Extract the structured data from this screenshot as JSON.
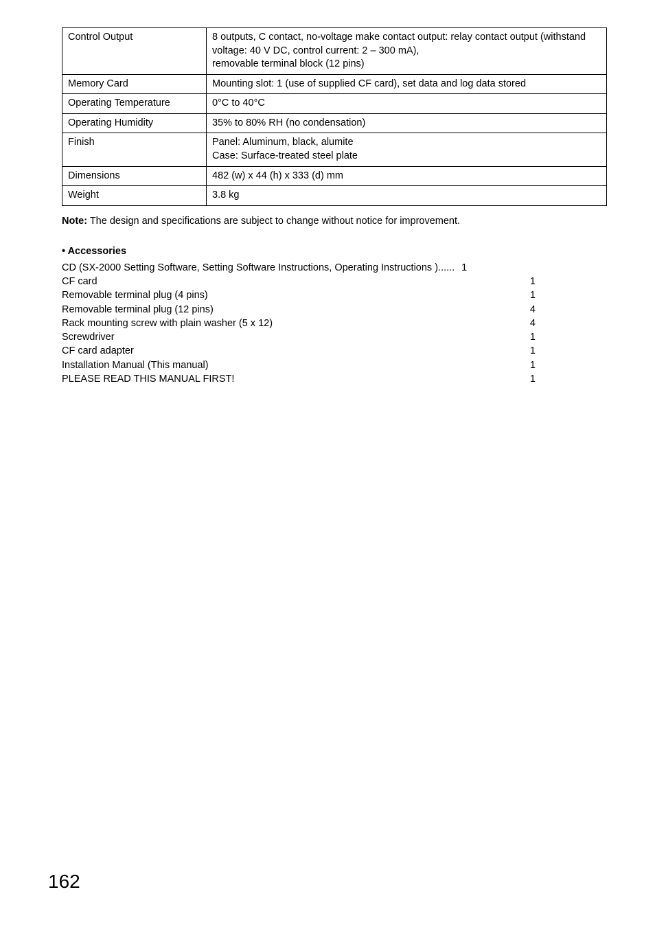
{
  "spec_table": {
    "rows": [
      {
        "label": "Control Output",
        "value": "8 outputs, C contact, no-voltage make contact output: relay contact output (withstand voltage: 40 V DC, control current: 2 – 300 mA),\nremovable terminal block (12 pins)"
      },
      {
        "label": "Memory Card",
        "value": "Mounting slot: 1 (use of supplied CF card), set data and log data stored"
      },
      {
        "label": "Operating Temperature",
        "value": "0°C to 40°C"
      },
      {
        "label": "Operating Humidity",
        "value": "35% to 80% RH (no condensation)"
      },
      {
        "label": "Finish",
        "value": "Panel: Aluminum, black, alumite\nCase:  Surface-treated steel plate"
      },
      {
        "label": "Dimensions",
        "value": "482 (w) x 44 (h) x 333 (d) mm"
      },
      {
        "label": "Weight",
        "value": "3.8 kg"
      }
    ]
  },
  "note": {
    "bold": "Note:",
    "text": " The design and specifications are subject to change without notice for improvement."
  },
  "accessories_heading": "• Accessories",
  "accessories": [
    {
      "label": "CD (SX-2000 Setting Software, Setting Software Instructions, Operating Instructions )",
      "qty": "1",
      "nodots": true
    },
    {
      "label": "CF card",
      "qty": "1"
    },
    {
      "label": "Removable terminal plug (4 pins)",
      "qty": "1"
    },
    {
      "label": "Removable terminal plug (12 pins)",
      "qty": "4"
    },
    {
      "label": "Rack mounting screw with plain washer (5 x 12)",
      "qty": "4"
    },
    {
      "label": "Screwdriver",
      "qty": "1"
    },
    {
      "label": "CF card adapter",
      "qty": "1"
    },
    {
      "label": "Installation Manual (This manual)",
      "qty": "1"
    },
    {
      "label": "PLEASE READ THIS MANUAL FIRST!",
      "qty": "1"
    }
  ],
  "page_number": "162"
}
